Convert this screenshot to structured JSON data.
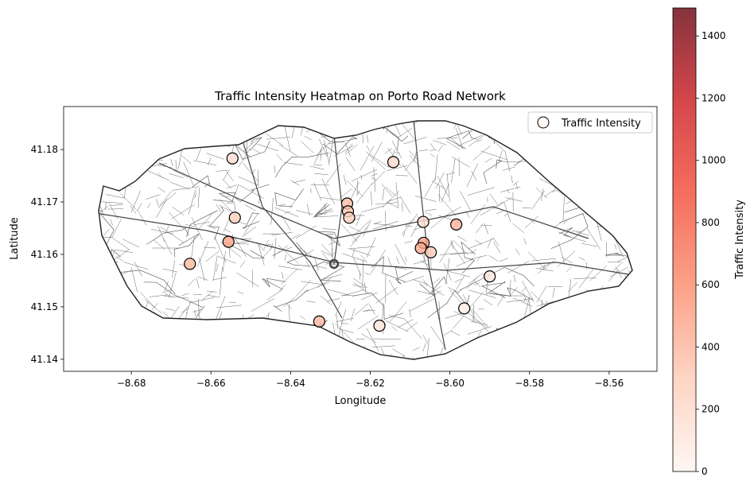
{
  "chart_data": {
    "type": "scatter",
    "title": "Traffic Intensity Heatmap on Porto Road Network",
    "xlabel": "Longitude",
    "ylabel": "Latitude",
    "xlim": [
      -8.697,
      -8.548
    ],
    "ylim": [
      41.1377,
      41.1882
    ],
    "xticks": [
      -8.68,
      -8.66,
      -8.64,
      -8.62,
      -8.6,
      -8.58,
      -8.56
    ],
    "xtick_labels": [
      "−8.68",
      "−8.66",
      "−8.64",
      "−8.62",
      "−8.60",
      "−8.58",
      "−8.56"
    ],
    "yticks": [
      41.14,
      41.15,
      41.16,
      41.17,
      41.18
    ],
    "ytick_labels": [
      "41.14",
      "41.15",
      "41.16",
      "41.17",
      "41.18"
    ],
    "grid": false,
    "legend": {
      "position": "top-right",
      "entries": [
        "Traffic Intensity"
      ]
    },
    "background_layer": "Porto road network",
    "colormap": "Reds",
    "colorbar": {
      "label": "Traffic Intensity",
      "range": [
        0,
        1490
      ],
      "ticks": [
        0,
        200,
        400,
        600,
        800,
        1000,
        1200,
        1400
      ],
      "tick_labels": [
        "0",
        "200",
        "400",
        "600",
        "800",
        "1000",
        "1200",
        "1400"
      ],
      "colors": [
        "#fff5f0",
        "#fdcab5",
        "#fc8a6a",
        "#f24a36",
        "#ca181d",
        "#67000d"
      ],
      "alpha": 0.8
    },
    "points": [
      {
        "x": -8.6546,
        "y": 41.1783,
        "value": 150
      },
      {
        "x": -8.6142,
        "y": 41.1776,
        "value": 180
      },
      {
        "x": -8.6258,
        "y": 41.1697,
        "value": 360
      },
      {
        "x": -8.6256,
        "y": 41.1682,
        "value": 330
      },
      {
        "x": -8.6253,
        "y": 41.167,
        "value": 240
      },
      {
        "x": -8.654,
        "y": 41.167,
        "value": 270
      },
      {
        "x": -8.6067,
        "y": 41.1662,
        "value": 150
      },
      {
        "x": -8.5984,
        "y": 41.1657,
        "value": 420
      },
      {
        "x": -8.6556,
        "y": 41.1624,
        "value": 480
      },
      {
        "x": -8.6066,
        "y": 41.1622,
        "value": 500
      },
      {
        "x": -8.6073,
        "y": 41.1612,
        "value": 460
      },
      {
        "x": -8.6048,
        "y": 41.1604,
        "value": 300
      },
      {
        "x": -8.6653,
        "y": 41.1582,
        "value": 380
      },
      {
        "x": -8.59,
        "y": 41.1558,
        "value": 100
      },
      {
        "x": -8.5964,
        "y": 41.1497,
        "value": 60
      },
      {
        "x": -8.6328,
        "y": 41.1472,
        "value": 370
      },
      {
        "x": -8.6177,
        "y": 41.1464,
        "value": 120
      }
    ]
  }
}
